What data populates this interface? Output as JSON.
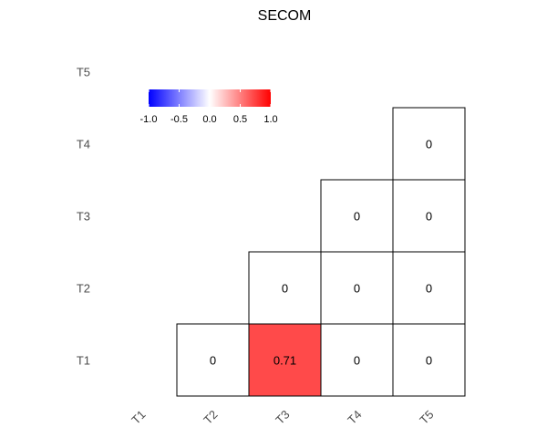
{
  "chart_data": {
    "type": "heatmap",
    "title": "SECOM",
    "variables": [
      "T1",
      "T2",
      "T3",
      "T4",
      "T5"
    ],
    "x_tick_labels": [
      "T1",
      "T2",
      "T3",
      "T4",
      "T5"
    ],
    "y_tick_labels": [
      "T1",
      "T2",
      "T3",
      "T4",
      "T5"
    ],
    "cells": [
      {
        "row": "T1",
        "col": "T2",
        "value": 0,
        "label": "0"
      },
      {
        "row": "T1",
        "col": "T3",
        "value": 0.71,
        "label": "0.71"
      },
      {
        "row": "T1",
        "col": "T4",
        "value": 0,
        "label": "0"
      },
      {
        "row": "T1",
        "col": "T5",
        "value": 0,
        "label": "0"
      },
      {
        "row": "T2",
        "col": "T3",
        "value": 0,
        "label": "0"
      },
      {
        "row": "T2",
        "col": "T4",
        "value": 0,
        "label": "0"
      },
      {
        "row": "T2",
        "col": "T5",
        "value": 0,
        "label": "0"
      },
      {
        "row": "T3",
        "col": "T4",
        "value": 0,
        "label": "0"
      },
      {
        "row": "T3",
        "col": "T5",
        "value": 0,
        "label": "0"
      },
      {
        "row": "T4",
        "col": "T5",
        "value": 0,
        "label": "0"
      }
    ],
    "color_scale": {
      "limits": [
        -1.0,
        1.0
      ],
      "low_color": "#0000ff",
      "mid_color": "#ffffff",
      "high_color": "#ff0000",
      "legend_ticks": [
        "-1.0",
        "-0.5",
        "0.0",
        "0.5",
        "1.0"
      ],
      "legend_tick_values": [
        -1.0,
        -0.5,
        0.0,
        0.5,
        1.0
      ],
      "legend_placement": "top-left inside plot"
    },
    "grid": false,
    "cell_border_color": "#000000"
  }
}
